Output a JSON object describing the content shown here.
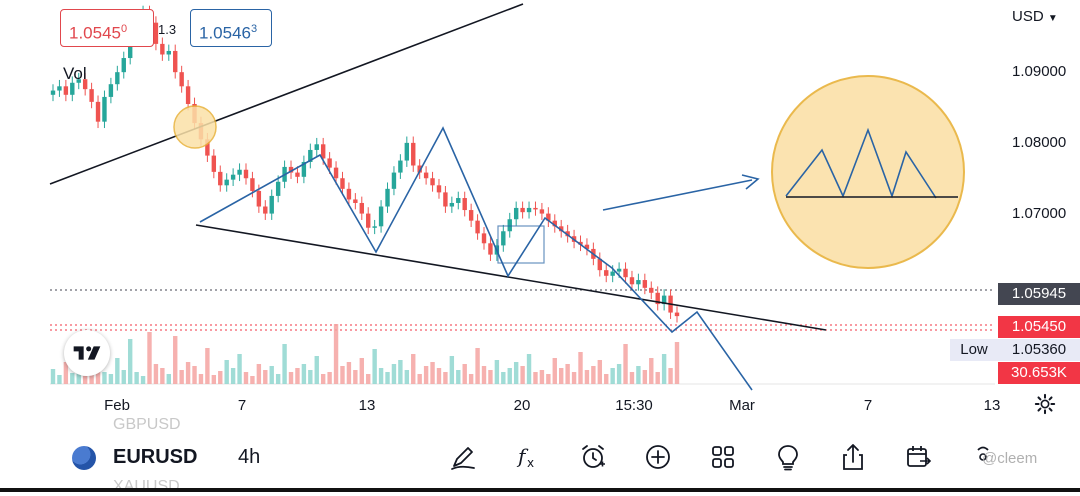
{
  "header": {
    "bid_price": "1.0545",
    "bid_price_sup": "0",
    "ask_price": "1.0546",
    "ask_price_sup": "3",
    "spread": "1.3",
    "volume_label": "Vol",
    "currency": "USD"
  },
  "y_axis": {
    "ticks": [
      "1.09000",
      "1.08000",
      "1.07000"
    ],
    "current_price_label": "1.05945",
    "last_price_label": "1.05450",
    "low_tag": "Low",
    "low_price_label": "1.05360",
    "volume_value_label": "30.653K"
  },
  "x_axis": {
    "ticks": [
      "Feb",
      "7",
      "13",
      "20",
      "15:30",
      "Mar",
      "7",
      "13"
    ]
  },
  "bottom_bar": {
    "symbol": "EURUSD",
    "interval": "4h",
    "ghost_symbol_above": "GBPUSD",
    "ghost_symbol_below": "XAUUSD",
    "tools": [
      "draw-icon",
      "indicators-icon",
      "alert-icon",
      "add-icon",
      "layouts-icon",
      "ideas-icon",
      "share-icon",
      "replay-icon",
      "more-icon"
    ],
    "watermark": "@cleem"
  },
  "colors": {
    "up_candle": "#26a69a",
    "down_candle": "#ef5350",
    "pattern_line": "#2a64a5",
    "trend_line": "#131722",
    "highlight_fill": "#fbe1a8",
    "highlight_stroke": "#e8b23a"
  },
  "chart_data": {
    "type": "candlestick",
    "symbol": "EURUSD",
    "interval": "4h",
    "price_range": [
      1.049,
      1.0985
    ],
    "close_series": [
      1.0864,
      1.087,
      1.0858,
      1.0875,
      1.088,
      1.0866,
      1.0848,
      1.082,
      1.0855,
      1.0873,
      1.089,
      1.091,
      1.0935,
      1.0955,
      1.0975,
      1.096,
      1.093,
      1.0915,
      1.092,
      1.089,
      1.087,
      1.0845,
      1.0818,
      1.0795,
      1.0772,
      1.0749,
      1.073,
      1.0738,
      1.0745,
      1.0752,
      1.074,
      1.0722,
      1.07,
      1.069,
      1.0715,
      1.0735,
      1.0756,
      1.0748,
      1.0742,
      1.0763,
      1.078,
      1.0788,
      1.0768,
      1.0755,
      1.074,
      1.0725,
      1.071,
      1.0705,
      1.069,
      1.067,
      1.0672,
      1.07,
      1.0725,
      1.0748,
      1.0765,
      1.079,
      1.0758,
      1.0748,
      1.074,
      1.073,
      1.072,
      1.07,
      1.0705,
      1.0712,
      1.0695,
      1.068,
      1.0662,
      1.0648,
      1.0632,
      1.0645,
      1.0665,
      1.0682,
      1.0698,
      1.0692,
      1.0698,
      1.0696,
      1.069,
      1.068,
      1.0672,
      1.0665,
      1.0658,
      1.065,
      1.0646,
      1.064,
      1.0626,
      1.061,
      1.0602,
      1.0608,
      1.0612,
      1.06,
      1.059,
      1.0596,
      1.0585,
      1.0578,
      1.0562,
      1.0574,
      1.055,
      1.0545
    ]
  }
}
